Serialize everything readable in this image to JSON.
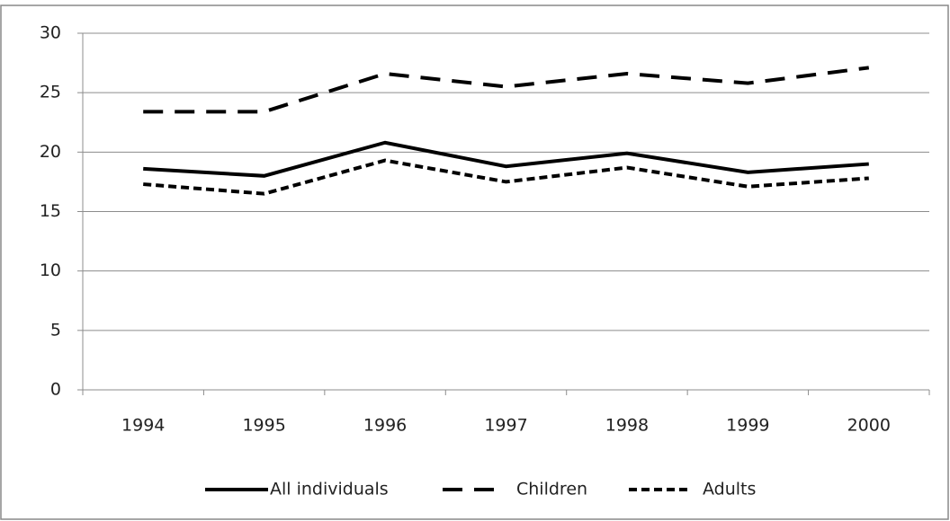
{
  "chart_data": {
    "type": "line",
    "categories": [
      "1994",
      "1995",
      "1996",
      "1997",
      "1998",
      "1999",
      "2000"
    ],
    "series": [
      {
        "name": "All individuals",
        "color": "#000000",
        "style": "solid",
        "values": [
          18.6,
          18.0,
          20.8,
          18.8,
          19.9,
          18.3,
          19.0
        ]
      },
      {
        "name": "Children",
        "color": "#000000",
        "style": "dashed",
        "values": [
          23.4,
          23.4,
          26.6,
          25.5,
          26.6,
          25.8,
          27.1
        ]
      },
      {
        "name": "Adults",
        "color": "#000000",
        "style": "dotted",
        "values": [
          17.3,
          16.5,
          19.3,
          17.5,
          18.7,
          17.1,
          17.8
        ]
      }
    ],
    "ylim": [
      0,
      30
    ],
    "yticks": [
      0,
      5,
      10,
      15,
      20,
      25,
      30
    ],
    "grid": true,
    "legend": "bottom"
  }
}
